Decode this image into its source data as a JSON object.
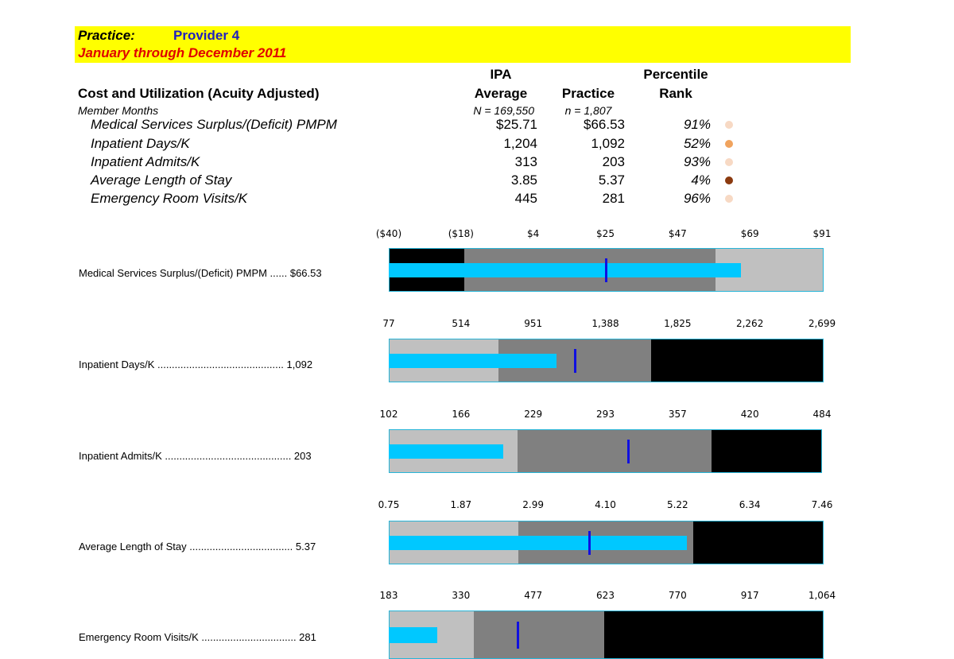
{
  "header": {
    "practice_label": "Practice:",
    "provider": "Provider 4",
    "period": "January through December 2011"
  },
  "table": {
    "section_title": "Cost and Utilization (Acuity Adjusted)",
    "member_months_label": "Member Months",
    "col_ipa_line1": "IPA",
    "col_ipa_line2": "Average",
    "col_practice": "Practice",
    "col_pct_line1": "Percentile",
    "col_pct_line2": "Rank",
    "ipa_n": "N = 169,550",
    "practice_n": "n = 1,807",
    "rows": [
      {
        "name": "Medical Services Surplus/(Deficit) PMPM",
        "ipa": "$25.71",
        "practice": "$66.53",
        "pct": "91%",
        "dot_color": "#f7d9c4"
      },
      {
        "name": "Inpatient Days/K",
        "ipa": "1,204",
        "practice": "1,092",
        "pct": "52%",
        "dot_color": "#f0a35e"
      },
      {
        "name": "Inpatient Admits/K",
        "ipa": "313",
        "practice": "203",
        "pct": "93%",
        "dot_color": "#f7d9c4"
      },
      {
        "name": "Average Length of Stay",
        "ipa": "3.85",
        "practice": "5.37",
        "pct": "4%",
        "dot_color": "#8b3a0f"
      },
      {
        "name": "Emergency Room Visits/K",
        "ipa": "445",
        "practice": "281",
        "pct": "96%",
        "dot_color": "#f7d9c4"
      }
    ]
  },
  "chart_data": [
    {
      "type": "bar",
      "label": "Medical Services Surplus/(Deficit) PMPM ...... $66.53",
      "ticks": [
        "($40)",
        "($18)",
        "$4",
        "$25",
        "$47",
        "$69",
        "$91"
      ],
      "range": [
        -40,
        91
      ],
      "bands": [
        {
          "from": -40,
          "to": -17.5,
          "color": "#000000"
        },
        {
          "from": -17.5,
          "to": 58.5,
          "color": "#808080"
        },
        {
          "from": 58.5,
          "to": 91,
          "color": "#c0c0c0"
        }
      ],
      "value": 66.53,
      "target": 25.71
    },
    {
      "type": "bar",
      "label": "Inpatient Days/K ............................................ 1,092",
      "ticks": [
        "77",
        "514",
        "951",
        "1,388",
        "1,825",
        "2,262",
        "2,699"
      ],
      "range": [
        77,
        2699
      ],
      "bands": [
        {
          "from": 77,
          "to": 738,
          "color": "#c0c0c0"
        },
        {
          "from": 738,
          "to": 1658,
          "color": "#808080"
        },
        {
          "from": 1658,
          "to": 2699,
          "color": "#000000"
        }
      ],
      "value": 1092,
      "target": 1204
    },
    {
      "type": "bar",
      "label": "Inpatient Admits/K ............................................ 203",
      "ticks": [
        "102",
        "166",
        "229",
        "293",
        "357",
        "420",
        "484"
      ],
      "range": [
        102,
        484
      ],
      "bands": [
        {
          "from": 102,
          "to": 215,
          "color": "#c0c0c0"
        },
        {
          "from": 215,
          "to": 386,
          "color": "#808080"
        },
        {
          "from": 386,
          "to": 484,
          "color": "#000000"
        }
      ],
      "value": 203,
      "target": 313
    },
    {
      "type": "bar",
      "label": "Average Length of Stay .................................... 5.37",
      "ticks": [
        "0.75",
        "1.87",
        "2.99",
        "4.10",
        "5.22",
        "6.34",
        "7.46"
      ],
      "range": [
        0.75,
        7.46
      ],
      "bands": [
        {
          "from": 0.75,
          "to": 2.74,
          "color": "#c0c0c0"
        },
        {
          "from": 2.74,
          "to": 5.45,
          "color": "#808080"
        },
        {
          "from": 5.45,
          "to": 7.46,
          "color": "#000000"
        }
      ],
      "value": 5.37,
      "target": 3.85
    },
    {
      "type": "bar",
      "label": "Emergency Room Visits/K ................................. 281",
      "ticks": [
        "183",
        "330",
        "477",
        "623",
        "770",
        "917",
        "1,064"
      ],
      "range": [
        183,
        1064
      ],
      "bands": [
        {
          "from": 183,
          "to": 355,
          "color": "#c0c0c0"
        },
        {
          "from": 355,
          "to": 620,
          "color": "#808080"
        },
        {
          "from": 620,
          "to": 1064,
          "color": "#000000"
        }
      ],
      "value": 281,
      "target": 445
    }
  ]
}
